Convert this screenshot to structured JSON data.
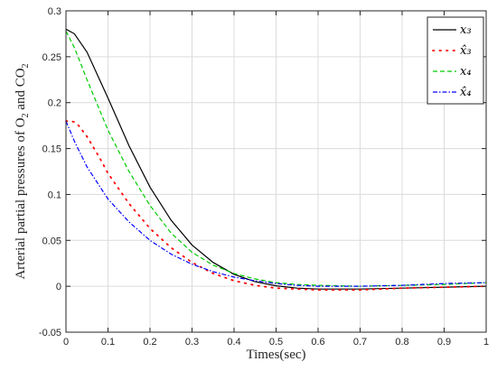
{
  "chart_data": {
    "type": "line",
    "title": "",
    "xlabel": "Times(sec)",
    "ylabel_parts": [
      "Arterial partial pressures of O",
      "2",
      " and CO",
      "2"
    ],
    "xlim": [
      0,
      1
    ],
    "ylim": [
      -0.05,
      0.3
    ],
    "xticks": [
      "0",
      "0.1",
      "0.2",
      "0.3",
      "0.4",
      "0.5",
      "0.6",
      "0.7",
      "0.8",
      "0.9",
      "1"
    ],
    "yticks": [
      "-0.05",
      "0",
      "0.05",
      "0.1",
      "0.15",
      "0.2",
      "0.25",
      "0.3"
    ],
    "grid": true,
    "legend_position": "top-right",
    "series": [
      {
        "name": "x₃",
        "color": "#000000",
        "style": "solid",
        "x": [
          0,
          0.02,
          0.05,
          0.1,
          0.15,
          0.2,
          0.25,
          0.3,
          0.35,
          0.4,
          0.45,
          0.5,
          0.55,
          0.6,
          0.65,
          0.7,
          0.8,
          0.9,
          1.0
        ],
        "y": [
          0.28,
          0.275,
          0.255,
          0.205,
          0.153,
          0.108,
          0.072,
          0.045,
          0.026,
          0.013,
          0.005,
          0.0005,
          -0.002,
          -0.003,
          -0.003,
          -0.003,
          -0.002,
          -0.001,
          0.0
        ]
      },
      {
        "name": "x̂₃",
        "color": "#ff0000",
        "style": "dotted",
        "x": [
          0,
          0.01,
          0.02,
          0.03,
          0.05,
          0.08,
          0.1,
          0.15,
          0.2,
          0.25,
          0.3,
          0.35,
          0.4,
          0.45,
          0.5,
          0.55,
          0.6,
          0.65,
          0.7,
          0.8,
          0.9,
          1.0
        ],
        "y": [
          0.18,
          0.18,
          0.179,
          0.175,
          0.163,
          0.14,
          0.123,
          0.09,
          0.063,
          0.042,
          0.026,
          0.014,
          0.006,
          0.001,
          -0.002,
          -0.003,
          -0.004,
          -0.004,
          -0.004,
          -0.002,
          -0.001,
          0.0
        ]
      },
      {
        "name": "x₄",
        "color": "#00cc00",
        "style": "dashed",
        "x": [
          0,
          0.02,
          0.05,
          0.1,
          0.15,
          0.2,
          0.25,
          0.3,
          0.35,
          0.4,
          0.45,
          0.5,
          0.55,
          0.6,
          0.7,
          0.8,
          0.9,
          1.0
        ],
        "y": [
          0.278,
          0.26,
          0.225,
          0.17,
          0.125,
          0.088,
          0.058,
          0.037,
          0.023,
          0.014,
          0.008,
          0.004,
          0.002,
          0.001,
          0.0,
          0.001,
          0.002,
          0.004
        ]
      },
      {
        "name": "x̂₄",
        "color": "#0000ff",
        "style": "dashdot",
        "x": [
          0,
          0.02,
          0.05,
          0.1,
          0.15,
          0.2,
          0.25,
          0.3,
          0.35,
          0.4,
          0.45,
          0.5,
          0.55,
          0.6,
          0.7,
          0.8,
          0.9,
          1.0
        ],
        "y": [
          0.18,
          0.158,
          0.13,
          0.095,
          0.07,
          0.05,
          0.035,
          0.024,
          0.016,
          0.01,
          0.006,
          0.003,
          0.001,
          0.0,
          0.0,
          0.001,
          0.003,
          0.004
        ]
      }
    ]
  }
}
